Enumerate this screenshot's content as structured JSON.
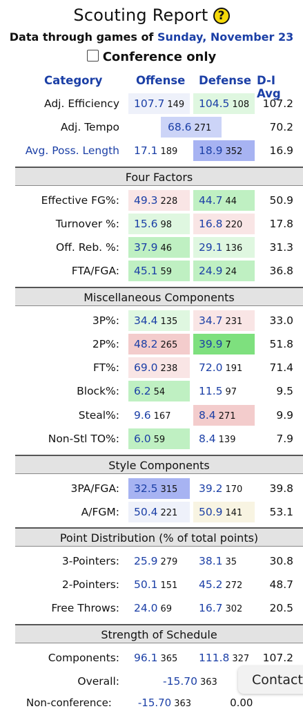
{
  "header": {
    "title": "Scouting Report",
    "help_icon": "?",
    "date_prefix": "Data through games of",
    "date": "Sunday, November 23",
    "conference_only_label": "Conference only"
  },
  "columns": {
    "category": "Category",
    "offense": "Offense",
    "defense": "Defense",
    "avg": "D-I Avg"
  },
  "colors": {
    "link_blue": "#1b3fa6",
    "good_strong": "#7ee07e",
    "good": "#bff0c2",
    "good_light": "#dff7e0",
    "bad": "#f3cccc",
    "bad_light": "#f9e5e5",
    "blue_strong": "#a7b3f2",
    "blue": "#ccd4f7",
    "neutral_light": "#eef1fa",
    "cream": "#f8f4e2",
    "section_bg": "#e3e3e3"
  },
  "top_rows": [
    {
      "label": "Adj. Efficiency",
      "off": "107.7",
      "off_rank": "149",
      "def": "104.5",
      "def_rank": "108",
      "avg": "107.2",
      "link": false
    },
    {
      "label": "Adj. Tempo",
      "tempo": "68.6",
      "tempo_rank": "271",
      "avg": "70.2",
      "link": false
    },
    {
      "label": "Avg. Poss. Length",
      "off": "17.1",
      "off_rank": "189",
      "def": "18.9",
      "def_rank": "352",
      "avg": "16.9",
      "link": true
    }
  ],
  "sections": {
    "four_factors": "Four Factors",
    "misc": "Miscellaneous Components",
    "style": "Style Components",
    "point_dist": "Point Distribution (% of total points)",
    "sos": "Strength of Schedule"
  },
  "four_factors": [
    {
      "label": "Effective FG%:",
      "off": "49.3",
      "off_rank": "228",
      "def": "44.7",
      "def_rank": "44",
      "avg": "50.9"
    },
    {
      "label": "Turnover %:",
      "off": "15.6",
      "off_rank": "98",
      "def": "16.8",
      "def_rank": "220",
      "avg": "17.8"
    },
    {
      "label": "Off. Reb. %:",
      "off": "37.9",
      "off_rank": "46",
      "def": "29.1",
      "def_rank": "136",
      "avg": "31.3"
    },
    {
      "label": "FTA/FGA:",
      "off": "45.1",
      "off_rank": "59",
      "def": "24.9",
      "def_rank": "24",
      "avg": "36.8"
    }
  ],
  "misc": [
    {
      "label": "3P%:",
      "off": "34.4",
      "off_rank": "135",
      "def": "34.7",
      "def_rank": "231",
      "avg": "33.0"
    },
    {
      "label": "2P%:",
      "off": "48.2",
      "off_rank": "265",
      "def": "39.9",
      "def_rank": "7",
      "avg": "51.8"
    },
    {
      "label": "FT%:",
      "off": "69.0",
      "off_rank": "238",
      "def": "72.0",
      "def_rank": "191",
      "avg": "71.4"
    },
    {
      "label": "Block%:",
      "off": "6.2",
      "off_rank": "54",
      "def": "11.5",
      "def_rank": "97",
      "avg": "9.5"
    },
    {
      "label": "Steal%:",
      "off": "9.6",
      "off_rank": "167",
      "def": "8.4",
      "def_rank": "271",
      "avg": "9.9"
    },
    {
      "label": "Non-Stl TO%:",
      "off": "6.0",
      "off_rank": "59",
      "def": "8.4",
      "def_rank": "139",
      "avg": "7.9"
    }
  ],
  "style": [
    {
      "label": "3PA/FGA:",
      "off": "32.5",
      "off_rank": "315",
      "def": "39.2",
      "def_rank": "170",
      "avg": "39.8"
    },
    {
      "label": "A/FGM:",
      "off": "50.4",
      "off_rank": "221",
      "def": "50.9",
      "def_rank": "141",
      "avg": "53.1"
    }
  ],
  "point_dist": [
    {
      "label": "3-Pointers:",
      "off": "25.9",
      "off_rank": "279",
      "def": "38.1",
      "def_rank": "35",
      "avg": "30.8"
    },
    {
      "label": "2-Pointers:",
      "off": "50.1",
      "off_rank": "151",
      "def": "45.2",
      "def_rank": "272",
      "avg": "48.7"
    },
    {
      "label": "Free Throws:",
      "off": "24.0",
      "off_rank": "69",
      "def": "16.7",
      "def_rank": "302",
      "avg": "20.5"
    }
  ],
  "sos": [
    {
      "label": "Components:",
      "off": "96.1",
      "off_rank": "365",
      "def": "111.8",
      "def_rank": "327",
      "avg": "107.2"
    },
    {
      "label": "Overall:",
      "val": "-15.70",
      "val_rank": "363"
    }
  ],
  "cutoff": {
    "label": "Non-conference:",
    "val": "-15.70",
    "val_rank": "363",
    "avg": "0.00"
  },
  "contact_button": "Contact"
}
